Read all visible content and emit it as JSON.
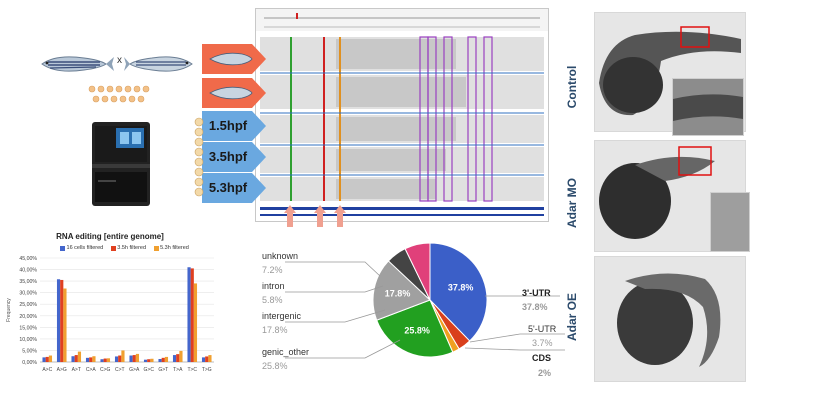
{
  "workflow": {
    "cross_symbol": "x",
    "stage_labels": [
      "1.5hpf",
      "3.5hpf",
      "5.3hpf"
    ]
  },
  "embryo_panels": {
    "labels": [
      "Control",
      "Adar MO",
      "Adar OE"
    ]
  },
  "chart_data": [
    {
      "type": "bar",
      "title": "RNA editing [entire genome]",
      "ylabel": "Frequency",
      "categories": [
        "A>C",
        "A>G",
        "A>T",
        "C>A",
        "C>G",
        "C>T",
        "G>A",
        "G>C",
        "G>T",
        "T>A",
        "T>C",
        "T>G"
      ],
      "ytick_labels": [
        "0,00%",
        "5,00%",
        "10,00%",
        "15,00%",
        "20,00%",
        "25,00%",
        "30,00%",
        "35,00%",
        "40,00%",
        "45,00%"
      ],
      "ylim": [
        0,
        45
      ],
      "grid": true,
      "legend_position": "top",
      "series": [
        {
          "name": "16 cells filtered",
          "color": "#4466cc",
          "values": [
            2.0,
            35.8,
            2.5,
            1.8,
            1.2,
            2.4,
            2.8,
            1.0,
            1.3,
            3.0,
            41.0,
            2.0
          ]
        },
        {
          "name": "3.5h filtered",
          "color": "#e04020",
          "values": [
            2.2,
            35.5,
            3.0,
            2.0,
            1.5,
            2.8,
            3.0,
            1.2,
            1.8,
            3.4,
            40.5,
            2.4
          ]
        },
        {
          "name": "5.3h filtered",
          "color": "#f0a030",
          "values": [
            2.8,
            31.8,
            4.5,
            2.5,
            1.6,
            5.0,
            3.5,
            1.4,
            2.2,
            4.8,
            34.0,
            3.0
          ]
        }
      ]
    },
    {
      "type": "pie",
      "slices": [
        {
          "label": "3'-UTR",
          "value": 37.8,
          "pct_text": "37.8%",
          "color": "#3b5fc8"
        },
        {
          "label": "5'-UTR",
          "value": 3.7,
          "pct_text": "3.7%",
          "color": "#d9401c"
        },
        {
          "label": "CDS",
          "value": 2.0,
          "pct_text": "2%",
          "color": "#f0a020"
        },
        {
          "label": "genic_other",
          "value": 25.8,
          "pct_text": "25.8%",
          "color": "#22a020"
        },
        {
          "label": "intergenic",
          "value": 17.8,
          "pct_text": "17.8%",
          "color": "#a0a0a0"
        },
        {
          "label": "intron",
          "value": 5.8,
          "pct_text": "5.8%",
          "color": "#444444"
        },
        {
          "label": "unknown",
          "value": 7.2,
          "pct_text": "7.2%",
          "color": "#e0407a"
        }
      ]
    }
  ]
}
